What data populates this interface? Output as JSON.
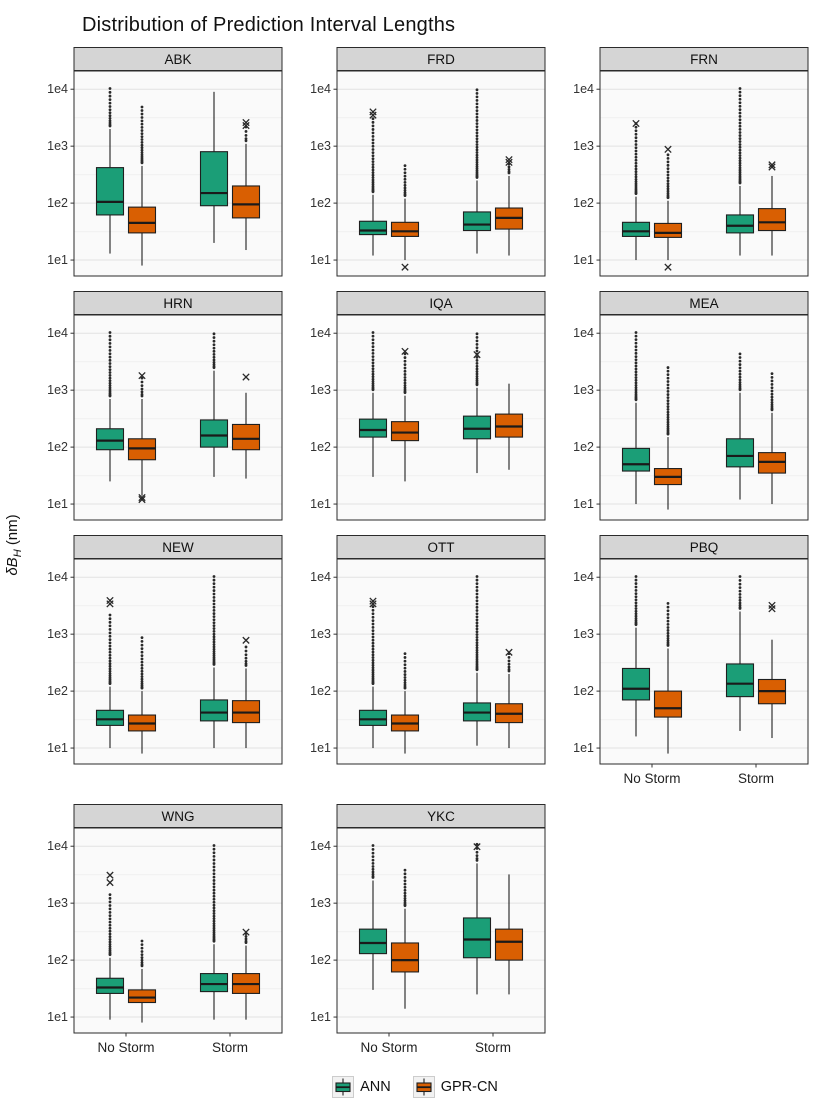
{
  "title": "Distribution of Prediction Interval Lengths",
  "y_axis_label": {
    "prefix": "δB",
    "sub": "H",
    "suffix": " (nm)"
  },
  "x_categories": [
    "No Storm",
    "Storm"
  ],
  "y_ticks": [
    {
      "label": "1e1",
      "log": 1
    },
    {
      "label": "1e2",
      "log": 2
    },
    {
      "label": "1e3",
      "log": 3
    },
    {
      "label": "1e4",
      "log": 4
    }
  ],
  "legend": {
    "items": [
      {
        "name": "ANN",
        "color": "#1b9e77"
      },
      {
        "name": "GPR-CN",
        "color": "#d95f02"
      }
    ]
  },
  "chart_data": {
    "type": "boxplot",
    "scale": "log10",
    "title": "Distribution of Prediction Interval Lengths",
    "ylabel": "δB_H (nm)",
    "ylim": [
      6,
      20000
    ],
    "grid": true,
    "legend_position": "bottom",
    "series_names": [
      "ANN",
      "GPR-CN"
    ],
    "categories": [
      "No Storm",
      "Storm"
    ],
    "facets": [
      {
        "station": "ABK",
        "show_x_labels": false,
        "boxes": [
          {
            "condition": "No Storm",
            "series": "ANN",
            "low": 13,
            "q1": 62,
            "med": 105,
            "q3": 420,
            "high": 2000,
            "outliers_to": 9500
          },
          {
            "condition": "No Storm",
            "series": "GPR-CN",
            "low": 8,
            "q1": 30,
            "med": 45,
            "q3": 85,
            "high": 450,
            "outliers_to": 4500
          },
          {
            "condition": "Storm",
            "series": "ANN",
            "low": 20,
            "q1": 90,
            "med": 150,
            "q3": 800,
            "high": 9000
          },
          {
            "condition": "Storm",
            "series": "GPR-CN",
            "low": 15,
            "q1": 55,
            "med": 95,
            "q3": 200,
            "high": 1100,
            "outliers_to": 2000,
            "x_marks": [
              2300,
              2600
            ]
          }
        ]
      },
      {
        "station": "FRD",
        "show_x_labels": false,
        "boxes": [
          {
            "condition": "No Storm",
            "series": "ANN",
            "low": 12,
            "q1": 28,
            "med": 33,
            "q3": 48,
            "high": 140,
            "outliers_to": 2800,
            "x_marks": [
              3500,
              4000
            ]
          },
          {
            "condition": "No Storm",
            "series": "GPR-CN",
            "low": 10,
            "q1": 26,
            "med": 32,
            "q3": 46,
            "high": 120,
            "outliers_to": 420,
            "x_marks": [
              7.5
            ]
          },
          {
            "condition": "Storm",
            "series": "ANN",
            "low": 13,
            "q1": 33,
            "med": 42,
            "q3": 70,
            "high": 250,
            "outliers_to": 9000
          },
          {
            "condition": "Storm",
            "series": "GPR-CN",
            "low": 12,
            "q1": 35,
            "med": 55,
            "q3": 82,
            "high": 300,
            "outliers_to": 450,
            "x_marks": [
              520,
              580
            ]
          }
        ]
      },
      {
        "station": "FRN",
        "show_x_labels": false,
        "boxes": [
          {
            "condition": "No Storm",
            "series": "ANN",
            "low": 10,
            "q1": 26,
            "med": 32,
            "q3": 46,
            "high": 130,
            "outliers_to": 2300,
            "x_marks": [
              2500
            ]
          },
          {
            "condition": "No Storm",
            "series": "GPR-CN",
            "low": 10,
            "q1": 25,
            "med": 30,
            "q3": 44,
            "high": 110,
            "outliers_to": 650,
            "x_marks": [
              880,
              7.5
            ]
          },
          {
            "condition": "Storm",
            "series": "ANN",
            "low": 12,
            "q1": 30,
            "med": 40,
            "q3": 62,
            "high": 200,
            "outliers_to": 9500
          },
          {
            "condition": "Storm",
            "series": "GPR-CN",
            "low": 12,
            "q1": 33,
            "med": 46,
            "q3": 80,
            "high": 300,
            "x_marks": [
              430,
              470
            ]
          }
        ]
      },
      {
        "station": "HRN",
        "show_x_labels": false,
        "boxes": [
          {
            "condition": "No Storm",
            "series": "ANN",
            "low": 25,
            "q1": 90,
            "med": 130,
            "q3": 210,
            "high": 700,
            "outliers_to": 9500
          },
          {
            "condition": "No Storm",
            "series": "GPR-CN",
            "low": 14,
            "q1": 60,
            "med": 95,
            "q3": 140,
            "high": 700,
            "outliers_to": 1500,
            "x_marks": [
              1800,
              13,
              12
            ]
          },
          {
            "condition": "Storm",
            "series": "ANN",
            "low": 30,
            "q1": 100,
            "med": 160,
            "q3": 300,
            "high": 2200,
            "outliers_to": 9000
          },
          {
            "condition": "Storm",
            "series": "GPR-CN",
            "low": 28,
            "q1": 90,
            "med": 140,
            "q3": 250,
            "high": 900,
            "x_marks": [
              1700
            ]
          }
        ]
      },
      {
        "station": "IQA",
        "show_x_labels": false,
        "boxes": [
          {
            "condition": "No Storm",
            "series": "ANN",
            "low": 30,
            "q1": 150,
            "med": 200,
            "q3": 310,
            "high": 900,
            "outliers_to": 9500
          },
          {
            "condition": "No Storm",
            "series": "GPR-CN",
            "low": 25,
            "q1": 130,
            "med": 180,
            "q3": 280,
            "high": 800,
            "outliers_to": 4000,
            "x_marks": [
              4800
            ]
          },
          {
            "condition": "Storm",
            "series": "ANN",
            "low": 35,
            "q1": 140,
            "med": 210,
            "q3": 350,
            "high": 1100,
            "outliers_to": 9000,
            "x_marks": [
              4200
            ]
          },
          {
            "condition": "Storm",
            "series": "GPR-CN",
            "low": 40,
            "q1": 150,
            "med": 230,
            "q3": 380,
            "high": 1300
          }
        ]
      },
      {
        "station": "MEA",
        "show_x_labels": false,
        "boxes": [
          {
            "condition": "No Storm",
            "series": "ANN",
            "low": 10,
            "q1": 38,
            "med": 50,
            "q3": 95,
            "high": 600,
            "outliers_to": 9500
          },
          {
            "condition": "No Storm",
            "series": "GPR-CN",
            "low": 8,
            "q1": 22,
            "med": 30,
            "q3": 42,
            "high": 150,
            "outliers_to": 2300
          },
          {
            "condition": "Storm",
            "series": "ANN",
            "low": 12,
            "q1": 45,
            "med": 70,
            "q3": 140,
            "high": 900,
            "outliers_to": 4000
          },
          {
            "condition": "Storm",
            "series": "GPR-CN",
            "low": 10,
            "q1": 35,
            "med": 55,
            "q3": 80,
            "high": 400,
            "outliers_to": 1800
          }
        ]
      },
      {
        "station": "NEW",
        "show_x_labels": false,
        "boxes": [
          {
            "condition": "No Storm",
            "series": "ANN",
            "low": 10,
            "q1": 25,
            "med": 32,
            "q3": 46,
            "high": 120,
            "outliers_to": 2000,
            "x_marks": [
              3400,
              3900
            ]
          },
          {
            "condition": "No Storm",
            "series": "GPR-CN",
            "low": 8,
            "q1": 20,
            "med": 27,
            "q3": 38,
            "high": 100,
            "outliers_to": 800
          },
          {
            "condition": "Storm",
            "series": "ANN",
            "low": 10,
            "q1": 30,
            "med": 42,
            "q3": 70,
            "high": 260,
            "outliers_to": 9500
          },
          {
            "condition": "Storm",
            "series": "GPR-CN",
            "low": 10,
            "q1": 28,
            "med": 42,
            "q3": 68,
            "high": 250,
            "outliers_to": 550,
            "x_marks": [
              780
            ]
          }
        ]
      },
      {
        "station": "OTT",
        "show_x_labels": false,
        "boxes": [
          {
            "condition": "No Storm",
            "series": "ANN",
            "low": 10,
            "q1": 25,
            "med": 32,
            "q3": 46,
            "high": 120,
            "outliers_to": 2800,
            "x_marks": [
              3400,
              3800
            ]
          },
          {
            "condition": "No Storm",
            "series": "GPR-CN",
            "low": 8,
            "q1": 20,
            "med": 27,
            "q3": 38,
            "high": 100,
            "outliers_to": 420
          },
          {
            "condition": "Storm",
            "series": "ANN",
            "low": 11,
            "q1": 30,
            "med": 42,
            "q3": 62,
            "high": 210,
            "outliers_to": 9500
          },
          {
            "condition": "Storm",
            "series": "GPR-CN",
            "low": 10,
            "q1": 28,
            "med": 40,
            "q3": 60,
            "high": 200,
            "outliers_to": 420,
            "x_marks": [
              480
            ]
          }
        ]
      },
      {
        "station": "PBQ",
        "show_x_labels": true,
        "boxes": [
          {
            "condition": "No Storm",
            "series": "ANN",
            "low": 16,
            "q1": 70,
            "med": 110,
            "q3": 250,
            "high": 1300,
            "outliers_to": 9500
          },
          {
            "condition": "No Storm",
            "series": "GPR-CN",
            "low": 8,
            "q1": 35,
            "med": 50,
            "q3": 100,
            "high": 560,
            "outliers_to": 3200
          },
          {
            "condition": "Storm",
            "series": "ANN",
            "low": 20,
            "q1": 80,
            "med": 135,
            "q3": 300,
            "high": 2500,
            "outliers_to": 9500
          },
          {
            "condition": "Storm",
            "series": "GPR-CN",
            "low": 15,
            "q1": 60,
            "med": 100,
            "q3": 160,
            "high": 800,
            "x_marks": [
              2800,
              3200
            ]
          }
        ]
      },
      {
        "station": "WNG",
        "show_x_labels": true,
        "boxes": [
          {
            "condition": "No Storm",
            "series": "ANN",
            "low": 9,
            "q1": 26,
            "med": 33,
            "q3": 48,
            "high": 110,
            "outliers_to": 1300,
            "x_marks": [
              2300,
              3100
            ]
          },
          {
            "condition": "No Storm",
            "series": "GPR-CN",
            "low": 8,
            "q1": 18,
            "med": 22,
            "q3": 30,
            "high": 70,
            "outliers_to": 200
          },
          {
            "condition": "Storm",
            "series": "ANN",
            "low": 9,
            "q1": 28,
            "med": 38,
            "q3": 58,
            "high": 190,
            "outliers_to": 9500
          },
          {
            "condition": "Storm",
            "series": "GPR-CN",
            "low": 9,
            "q1": 26,
            "med": 38,
            "q3": 58,
            "high": 180,
            "outliers_to": 270,
            "x_marks": [
              310
            ]
          }
        ]
      },
      {
        "station": "YKC",
        "show_x_labels": true,
        "boxes": [
          {
            "condition": "No Storm",
            "series": "ANN",
            "low": 30,
            "q1": 130,
            "med": 200,
            "q3": 350,
            "high": 2500,
            "outliers_to": 9500
          },
          {
            "condition": "No Storm",
            "series": "GPR-CN",
            "low": 14,
            "q1": 62,
            "med": 100,
            "q3": 200,
            "high": 800,
            "outliers_to": 3500
          },
          {
            "condition": "Storm",
            "series": "ANN",
            "low": 25,
            "q1": 110,
            "med": 230,
            "q3": 550,
            "high": 5000,
            "outliers_to": 10000,
            "x_marks": [
              9800
            ]
          },
          {
            "condition": "Storm",
            "series": "GPR-CN",
            "low": 25,
            "q1": 100,
            "med": 210,
            "q3": 350,
            "high": 3200
          }
        ]
      }
    ]
  }
}
